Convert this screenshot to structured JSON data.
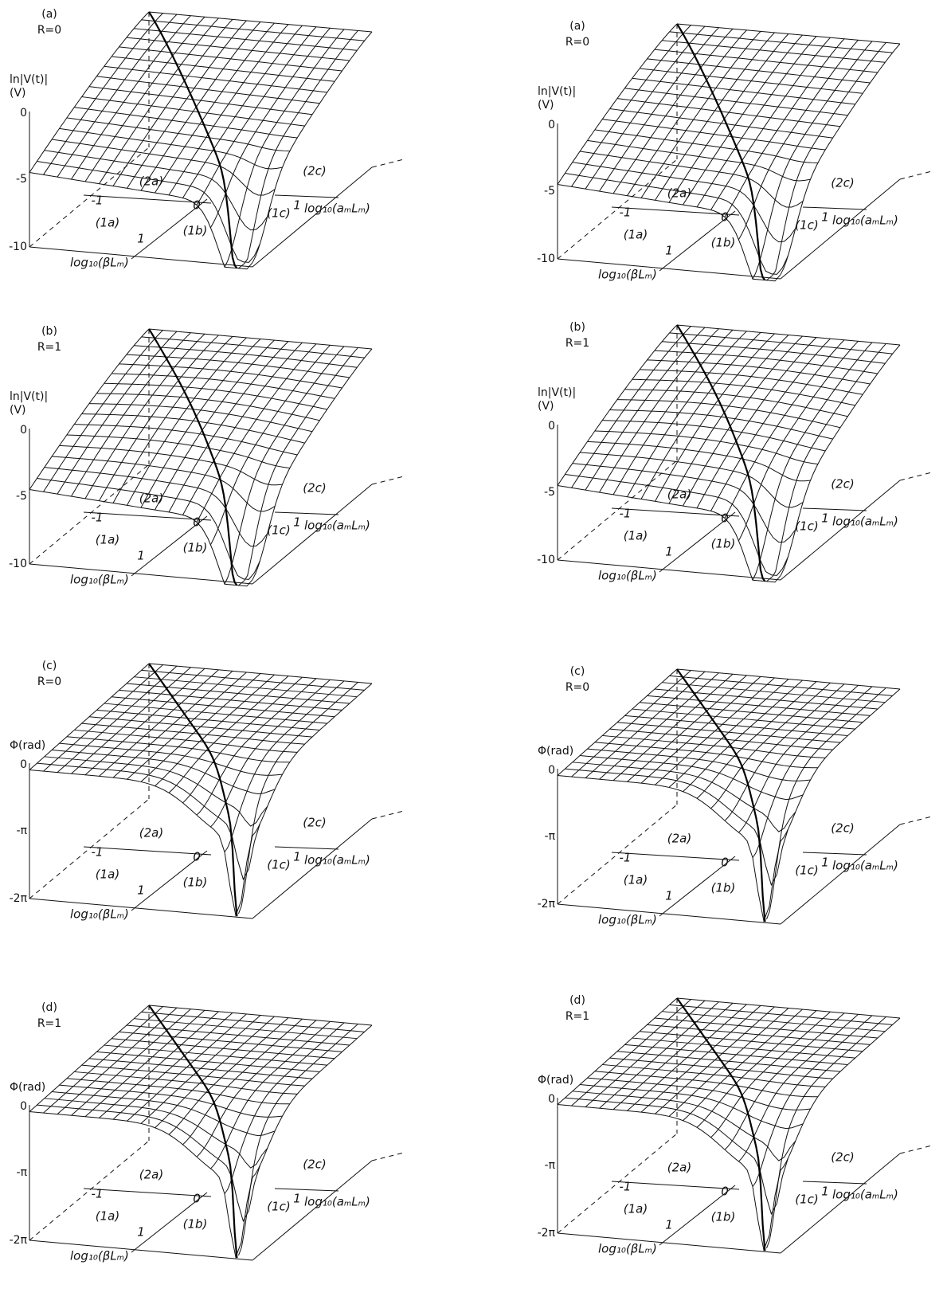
{
  "panels": [
    {
      "label": "(a)",
      "r": "R=0",
      "z_label": [
        "ln|V(t)|",
        "(V)"
      ],
      "z_ticks": [
        "0",
        "-5",
        "-10"
      ],
      "regions": [
        "(2a)",
        "(1a)",
        "(1b)",
        "(1c)",
        "(2c)"
      ],
      "beta_ticks": [
        "-1",
        "0",
        "1"
      ],
      "a_tick": "1",
      "beta_axis": "log₁₀(βLₘ)",
      "a_axis": "log₁₀(aₘLₘ)"
    },
    {
      "label": "(a)",
      "r": "R=0",
      "z_label": [
        "ln|V(t)|",
        "(V)"
      ],
      "z_ticks": [
        "0",
        "-5",
        "-10"
      ],
      "regions": [
        "(2a)",
        "(1a)",
        "(1b)",
        "(1c)",
        "(2c)"
      ],
      "beta_ticks": [
        "-1",
        "0",
        "1"
      ],
      "a_tick": "1",
      "beta_axis": "log₁₀(βLₘ)",
      "a_axis": "log₁₀(aₘLₘ)"
    },
    {
      "label": "(b)",
      "r": "R=1",
      "z_label": [
        "ln|V(t)|",
        "(V)"
      ],
      "z_ticks": [
        "0",
        "-5",
        "-10"
      ],
      "regions": [
        "(2a)",
        "(1a)",
        "(1b)",
        "(1c)",
        "(2c)"
      ],
      "beta_ticks": [
        "-1",
        "0",
        "1"
      ],
      "a_tick": "1",
      "beta_axis": "log₁₀(βLₘ)",
      "a_axis": "log₁₀(aₘLₘ)"
    },
    {
      "label": "(b)",
      "r": "R=1",
      "z_label": [
        "ln|V(t)|",
        "(V)"
      ],
      "z_ticks": [
        "0",
        "-5",
        "-10"
      ],
      "regions": [
        "(2a)",
        "(1a)",
        "(1b)",
        "(1c)",
        "(2c)"
      ],
      "beta_ticks": [
        "-1",
        "0",
        "1"
      ],
      "a_tick": "1",
      "beta_axis": "log₁₀(βLₘ)",
      "a_axis": "log₁₀(aₘLₘ)"
    },
    {
      "label": "(c)",
      "r": "R=0",
      "z_label": [
        "Φ(rad)"
      ],
      "z_ticks": [
        "0",
        "-π",
        "-2π"
      ],
      "regions": [
        "(2a)",
        "(1a)",
        "(1b)",
        "(1c)",
        "(2c)"
      ],
      "beta_ticks": [
        "-1",
        "0",
        "1"
      ],
      "a_tick": "1",
      "beta_axis": "log₁₀(βLₘ)",
      "a_axis": "log₁₀(aₘLₘ)"
    },
    {
      "label": "(c)",
      "r": "R=0",
      "z_label": [
        "Φ(rad)"
      ],
      "z_ticks": [
        "0",
        "-π",
        "-2π"
      ],
      "regions": [
        "(2a)",
        "(1a)",
        "(1b)",
        "(1c)",
        "(2c)"
      ],
      "beta_ticks": [
        "-1",
        "0",
        "1"
      ],
      "a_tick": "1",
      "beta_axis": "log₁₀(βLₘ)",
      "a_axis": "log₁₀(aₘLₘ)"
    },
    {
      "label": "(d)",
      "r": "R=1",
      "z_label": [
        "Φ(rad)"
      ],
      "z_ticks": [
        "0",
        "-π",
        "-2π"
      ],
      "regions": [
        "(2a)",
        "(1a)",
        "(1b)",
        "(1c)",
        "(2c)"
      ],
      "beta_ticks": [
        "-1",
        "0",
        "1"
      ],
      "a_tick": "1",
      "beta_axis": "log₁₀(βLₘ)",
      "a_axis": "log₁₀(aₘLₘ)"
    },
    {
      "label": "(d)",
      "r": "R=1",
      "z_label": [
        "Φ(rad)"
      ],
      "z_ticks": [
        "0",
        "-π",
        "-2π"
      ],
      "regions": [
        "(2a)",
        "(1a)",
        "(1b)",
        "(1c)",
        "(2c)"
      ],
      "beta_ticks": [
        "-1",
        "0",
        "1"
      ],
      "a_tick": "1",
      "beta_axis": "log₁₀(βLₘ)",
      "a_axis": "log₁₀(aₘLₘ)"
    }
  ]
}
